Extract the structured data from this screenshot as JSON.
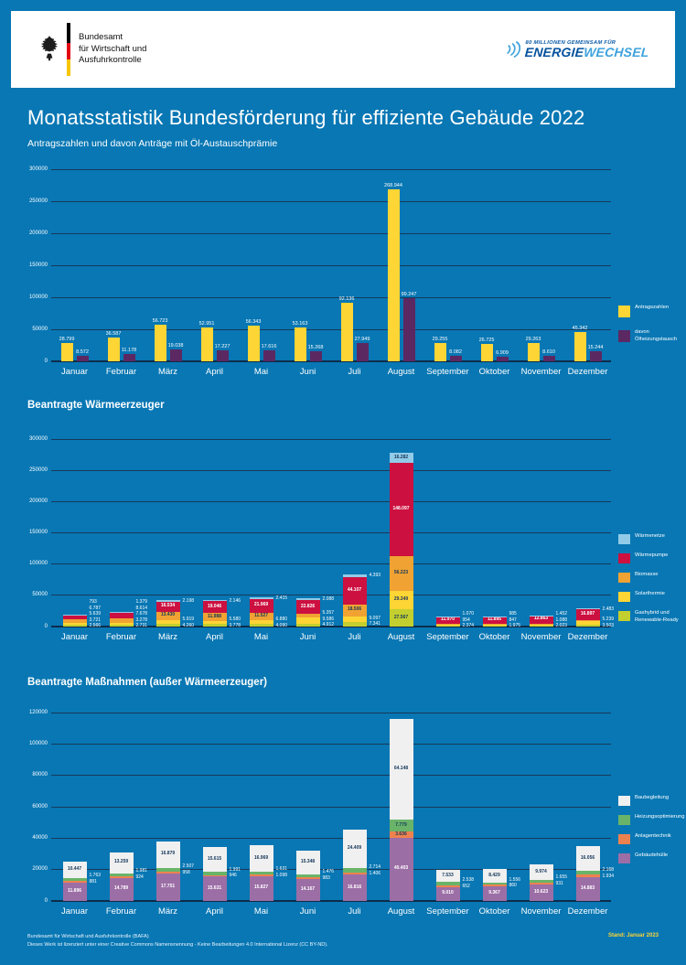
{
  "header": {
    "agency_line1": "Bundesamt",
    "agency_line2": "für Wirtschaft und",
    "agency_line3": "Ausfuhrkontrolle",
    "campaign_small": "80 MILLIONEN GEMEINSAM FÜR",
    "campaign_word1": "ENERGIE",
    "campaign_word2": "WECHSEL",
    "campaign_color_dark": "#00519d",
    "campaign_color_light": "#3fa3dc"
  },
  "page": {
    "title": "Monatsstatistik Bundesförderung für effiziente Gebäude 2022",
    "background_color": "#0877b4"
  },
  "chart_data": [
    {
      "type": "bar",
      "title": "Antragszahlen und davon Anträge mit Öl-Austauschprämie",
      "categories": [
        "Januar",
        "Februar",
        "März",
        "April",
        "Mai",
        "Juni",
        "Juli",
        "August",
        "September",
        "Oktober",
        "November",
        "Dezember"
      ],
      "ylim": [
        0,
        300000
      ],
      "ystep": 50000,
      "grid": true,
      "legend_position": "right",
      "series": [
        {
          "name": "Antragszahlen",
          "color": "#fdd535",
          "values": [
            28799,
            36587,
            56723,
            52951,
            56343,
            53163,
            92136,
            268944,
            29255,
            26725,
            29263,
            45342
          ],
          "labels": [
            "28.799",
            "36.587",
            "56.723",
            "52.951",
            "56.343",
            "53.163",
            "92.136",
            "268.944",
            "29.255",
            "26.725",
            "29.263",
            "45.342"
          ]
        },
        {
          "name": "davon Ölheizungstausch",
          "color": "#5c2862",
          "values": [
            8572,
            11178,
            19038,
            17227,
            17616,
            15268,
            27949,
            99247,
            8082,
            6909,
            8610,
            15244
          ],
          "labels": [
            "8.572",
            "11.178",
            "19.038",
            "17.227",
            "17.616",
            "15.268",
            "27.949",
            "99.247",
            "8.082",
            "6.909",
            "8.610",
            "15.244"
          ]
        }
      ],
      "legend": [
        {
          "label": "Antragszahlen",
          "color": "#fdd535"
        },
        {
          "label": "davon Ölheizungstausch",
          "color": "#5c2862"
        }
      ]
    },
    {
      "type": "stacked-bar",
      "title": "Beantragte Wärmeerzeuger",
      "categories": [
        "Januar",
        "Februar",
        "März",
        "April",
        "Mai",
        "Juni",
        "Juli",
        "August",
        "September",
        "Oktober",
        "November",
        "Dezember"
      ],
      "ylim": [
        0,
        300000
      ],
      "ystep": 50000,
      "grid": true,
      "legend_position": "right",
      "label_threshold": 7.8,
      "series": [
        {
          "name": "Gashybrid und Renewable-Ready",
          "color": "#c3cf2e",
          "labelColor": "#14365a",
          "values": [
            2566,
            2731,
            4260,
            3778,
            4090,
            4912,
            7341,
            27567,
            2374,
            1975,
            2023,
            3503
          ],
          "labels": [
            "2.566",
            "2.731",
            "4.260",
            "3.778",
            "4.090",
            "4.912",
            "7.341",
            "27.567",
            "2.374",
            "1.975",
            "2.023",
            "3.503"
          ]
        },
        {
          "name": "Solarthermie",
          "color": "#fdd535",
          "labelColor": "#14365a",
          "values": [
            3721,
            3278,
            5919,
            5580,
            6880,
            9586,
            9097,
            29349,
            954,
            847,
            1088,
            5239
          ],
          "labels": [
            "3.721",
            "3.278",
            "5.919",
            "5.580",
            "6.880",
            "9.586",
            "9.097",
            "29.349",
            "954",
            "847",
            "1.088",
            "5.239"
          ]
        },
        {
          "name": "Biomasse",
          "color": "#f0a233",
          "labelColor": "#14365a",
          "values": [
            5639,
            7678,
            13430,
            11988,
            11527,
            5357,
            18506,
            56223,
            1070,
            985,
            1452,
            1500
          ],
          "labels": [
            "5.639",
            "7.678",
            "13.430",
            "11.988",
            "11.527",
            "5.357",
            "18.506",
            "56.223",
            "1.070",
            "985",
            "1.452",
            null
          ]
        },
        {
          "name": "Wärmepumpe",
          "color": "#cc1040",
          "labelColor": "#ffffff",
          "values": [
            6787,
            8614,
            16534,
            19046,
            21969,
            22826,
            44107,
            148097,
            11970,
            11895,
            12863,
            16897
          ],
          "labels": [
            "6.787",
            "8.614",
            "16.534",
            "19.046",
            "21.969",
            "22.826",
            "44.107",
            "148.097",
            "11.970",
            "11.895",
            "12.863",
            "16.897"
          ]
        },
        {
          "name": "Wärmenetze",
          "color": "#92cbe8",
          "labelColor": "#14365a",
          "values": [
            793,
            1379,
            2198,
            2146,
            2415,
            2088,
            4393,
            16282,
            350,
            300,
            350,
            2483
          ],
          "labels": [
            "793",
            "1.379",
            "2.198",
            "2.146",
            "2.415",
            "2.088",
            "4.393",
            "16.282",
            null,
            null,
            null,
            "2.483"
          ]
        }
      ],
      "legend": [
        {
          "label": "Wärmenetze",
          "color": "#92cbe8"
        },
        {
          "label": "Wärmepumpe",
          "color": "#cc1040"
        },
        {
          "label": "Biomasse",
          "color": "#f0a233"
        },
        {
          "label": "Solarthermie",
          "color": "#fdd535"
        },
        {
          "label": "Gashybrid und Renewable-Ready",
          "color": "#c3cf2e"
        }
      ]
    },
    {
      "type": "stacked-bar",
      "title": "Beantragte Maßnahmen (außer Wärmeerzeuger)",
      "categories": [
        "Januar",
        "Februar",
        "März",
        "April",
        "Mai",
        "Juni",
        "Juli",
        "August",
        "September",
        "Oktober",
        "November",
        "Dezember"
      ],
      "ylim": [
        0,
        120000
      ],
      "ystep": 20000,
      "grid": true,
      "legend_position": "right",
      "label_threshold": 6,
      "series": [
        {
          "name": "Gebäudehülle",
          "color": "#9c6ea6",
          "labelColor": "#ffffff",
          "values": [
            11896,
            14789,
            17751,
            15631,
            15827,
            14167,
            16816,
            40403,
            9010,
            9367,
            10623,
            14883
          ],
          "labels": [
            "11.896",
            "14.789",
            "17.751",
            "15.631",
            "15.827",
            "14.167",
            "16.816",
            "40.403",
            "9.010",
            "9.367",
            "10.623",
            "14.883"
          ]
        },
        {
          "name": "Anlagentechnik",
          "color": "#ee824e",
          "labelColor": "#14365a",
          "values": [
            881,
            924,
            958,
            946,
            1098,
            983,
            1406,
            3636,
            652,
            860,
            931,
            1934
          ],
          "labels": [
            "881",
            "924",
            "958",
            "946",
            "1.098",
            "983",
            "1.406",
            "3.636",
            "652",
            "860",
            "931",
            "1.934"
          ]
        },
        {
          "name": "Heizungsoptimierung",
          "color": "#6ab46a",
          "labelColor": "#14365a",
          "values": [
            1763,
            1981,
            2507,
            1991,
            1631,
            1476,
            2714,
            7779,
            2538,
            1556,
            1655,
            2168
          ],
          "labels": [
            "1.763",
            "1.981",
            "2.507",
            "1.991",
            "1.631",
            "1.476",
            "2.714",
            "7.779",
            "2.538",
            "1.556",
            "1.655",
            "2.168"
          ]
        },
        {
          "name": "Baubegleitung",
          "color": "#f0f0f0",
          "labelColor": "#14365a",
          "values": [
            10447,
            13259,
            16879,
            15615,
            16969,
            15348,
            24409,
            64148,
            7533,
            8429,
            9974,
            16056
          ],
          "labels": [
            "10.447",
            "13.259",
            "16.879",
            "15.615",
            "16.969",
            "15.348",
            "24.409",
            "64.148",
            "7.533",
            "8.429",
            "9.974",
            "16.056"
          ]
        }
      ],
      "legend": [
        {
          "label": "Baubegleitung",
          "color": "#f0f0f0"
        },
        {
          "label": "Heizungsoptimierung",
          "color": "#6ab46a"
        },
        {
          "label": "Anlagentechnik",
          "color": "#ee824e"
        },
        {
          "label": "Gebäudehülle",
          "color": "#9c6ea6"
        }
      ]
    }
  ],
  "footer": {
    "line1": "Bundesamt für Wirtschaft und Ausfuhrkontrolle (BAFA)",
    "line2": "Dieses Werk ist lizenziert unter einer Creative Commons Namensnennung - Keine Bearbeitungen 4.0 International Lizenz (CC BY-ND).",
    "stand": "Stand: Januar 2023"
  }
}
